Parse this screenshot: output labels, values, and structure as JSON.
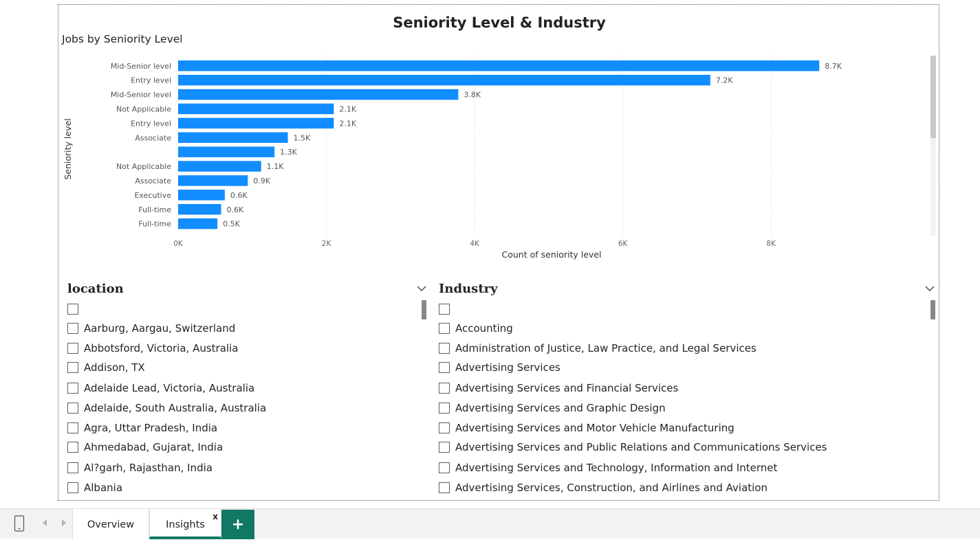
{
  "page": {
    "title": "Seniority Level & Industry"
  },
  "chart_data": {
    "type": "bar",
    "orientation": "horizontal",
    "title": "Jobs by Seniority Level",
    "xlabel": "Count of seniority level",
    "ylabel": "Seniority level",
    "categories": [
      "Mid-Senior level",
      "Entry level",
      "Mid-Senior level",
      "Not Applicable",
      "Entry level",
      "Associate",
      "",
      "Not Applicable",
      "Associate",
      "Executive",
      "Full-time",
      "Full-time"
    ],
    "values": [
      8650,
      7180,
      3780,
      2100,
      2100,
      1480,
      1300,
      1120,
      940,
      630,
      580,
      530
    ],
    "data_labels": [
      "8.7K",
      "7.2K",
      "3.8K",
      "2.1K",
      "2.1K",
      "1.5K",
      "1.3K",
      "1.1K",
      "0.9K",
      "0.6K",
      "0.6K",
      "0.5K"
    ],
    "xticks": [
      0,
      2000,
      4000,
      6000,
      8000
    ],
    "xtick_labels": [
      "0K",
      "2K",
      "4K",
      "6K",
      "8K"
    ],
    "xlim": [
      0,
      9000
    ],
    "grid": true,
    "bar_color": "#118DFF"
  },
  "slicers": {
    "location": {
      "title": "location",
      "items": [
        "",
        "Aarburg, Aargau, Switzerland",
        "Abbotsford, Victoria, Australia",
        "Addison, TX",
        "Adelaide Lead, Victoria, Australia",
        "Adelaide, South Australia, Australia",
        "Agra, Uttar Pradesh, India",
        "Ahmedabad, Gujarat, India",
        "Al?garh, Rajasthan, India",
        "Albania"
      ]
    },
    "industry": {
      "title": "Industry",
      "items": [
        "",
        "Accounting",
        "Administration of Justice, Law Practice, and Legal Services",
        "Advertising Services",
        "Advertising Services and Financial Services",
        "Advertising Services and Graphic Design",
        "Advertising Services and Motor Vehicle Manufacturing",
        "Advertising Services and Public Relations and Communications Services",
        "Advertising Services and Technology, Information and Internet",
        "Advertising Services, Construction, and Airlines and Aviation"
      ]
    }
  },
  "tabs": {
    "overview": "Overview",
    "insights": "Insights",
    "close": "x",
    "add": "+"
  },
  "colors": {
    "accent": "#117865",
    "bar": "#118DFF"
  }
}
